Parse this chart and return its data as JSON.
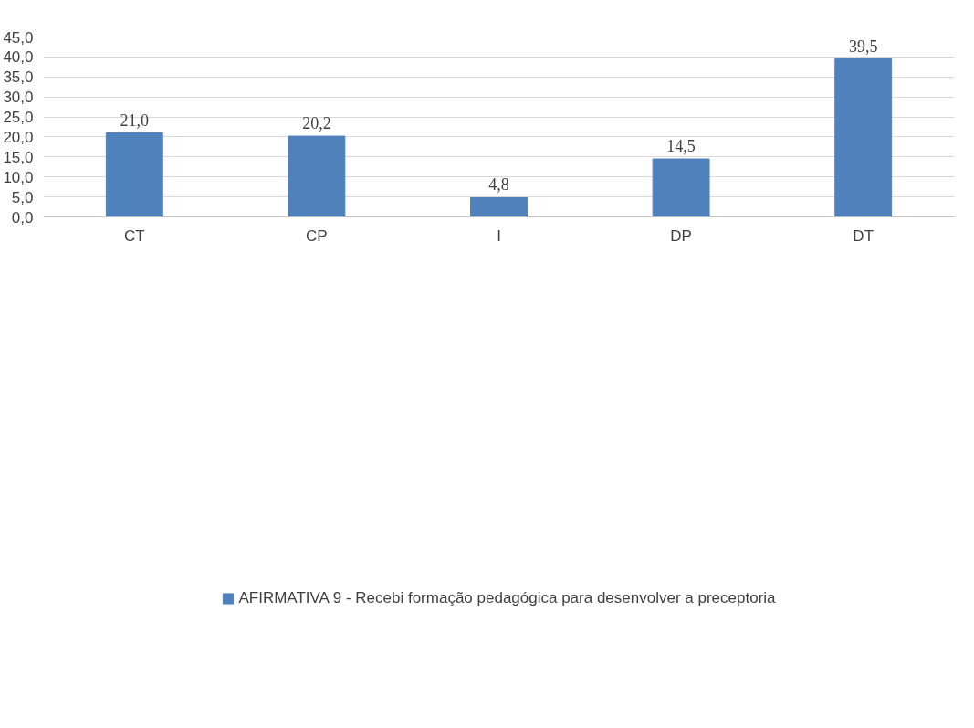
{
  "chart_data": {
    "type": "bar",
    "categories": [
      "CT",
      "CP",
      "I",
      "DP",
      "DT"
    ],
    "series": [
      {
        "name": "AFIRMATIVA 9 - Recebi formação pedagógica para desenvolver a preceptoria",
        "color": "#4f81bd",
        "values": [
          21.0,
          20.2,
          4.8,
          14.5,
          39.5
        ],
        "value_labels": [
          "21,0",
          "20,2",
          "4,8",
          "14,5",
          "39,5"
        ]
      }
    ],
    "ylim": [
      0,
      45
    ],
    "yticks": [
      {
        "value": 0,
        "label": "0,0"
      },
      {
        "value": 5,
        "label": "5,0"
      },
      {
        "value": 10,
        "label": "10,0"
      },
      {
        "value": 15,
        "label": "15,0"
      },
      {
        "value": 20,
        "label": "20,0"
      },
      {
        "value": 25,
        "label": "25,0"
      },
      {
        "value": 30,
        "label": "30,0"
      },
      {
        "value": 35,
        "label": "35,0"
      },
      {
        "value": 40,
        "label": "40,0"
      },
      {
        "value": 45,
        "label": "45,0"
      }
    ],
    "grid": "y",
    "legend": "bottom"
  }
}
